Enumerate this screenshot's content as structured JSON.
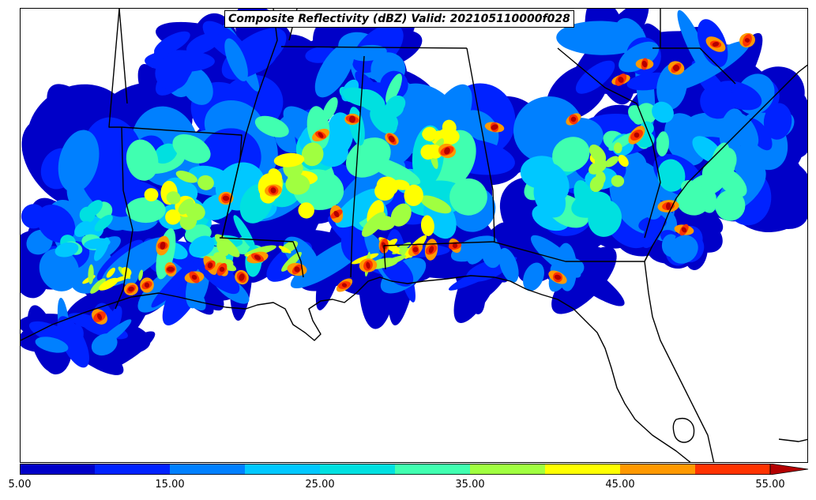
{
  "title": "Composite Reflectivity (dBZ) Valid: 202105110000f028",
  "colorbar": {
    "levels": [
      5,
      10,
      15,
      20,
      25,
      30,
      35,
      40,
      45,
      50,
      55
    ],
    "colors": [
      "#0000c8",
      "#0022ff",
      "#0080ff",
      "#00c8ff",
      "#00e0e0",
      "#40ffb0",
      "#a0ff40",
      "#ffff00",
      "#ff9900",
      "#ff3300",
      "#b40000"
    ],
    "extend": "max",
    "tick_labels": [
      "5.00",
      "15.00",
      "25.00",
      "35.00",
      "45.00",
      "55.00"
    ],
    "tick_values": [
      5,
      15,
      25,
      35,
      45,
      55
    ]
  },
  "map": {
    "region": "Southeastern United States",
    "variable": "Composite Reflectivity",
    "units": "dBZ",
    "valid": "202105110000f028",
    "colors": {
      "background": "#ffffff",
      "borders": "#000000"
    }
  }
}
